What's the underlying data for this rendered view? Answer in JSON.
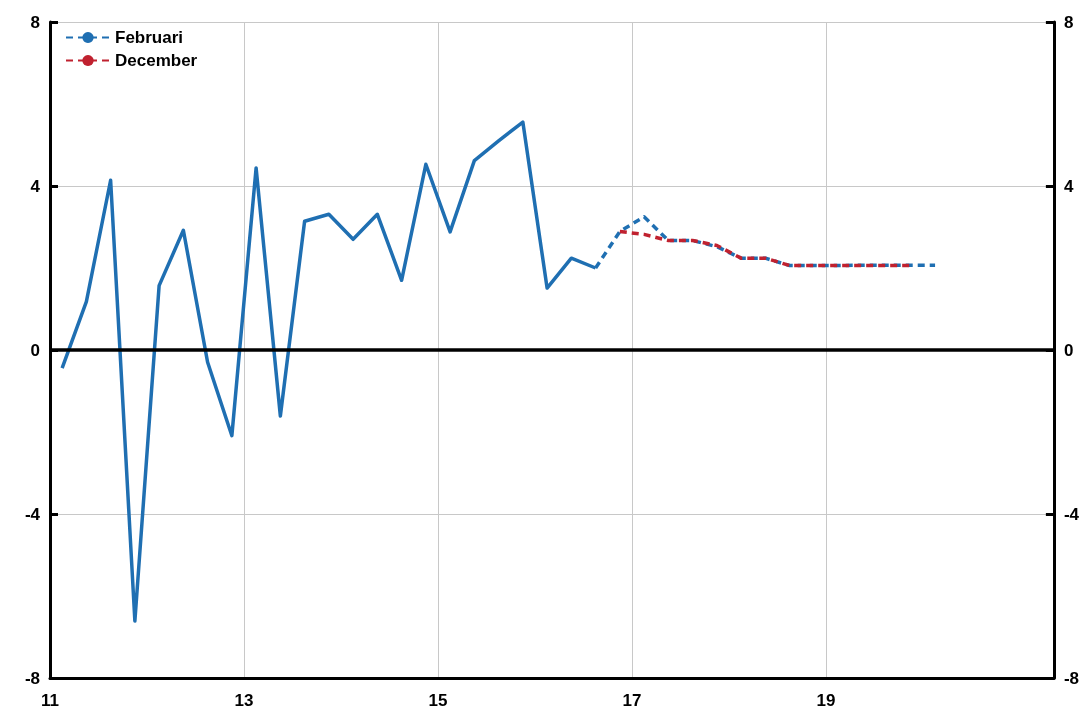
{
  "chart_data": {
    "type": "line",
    "xlim": [
      11,
      21.35
    ],
    "xticks": [
      11,
      13,
      15,
      17,
      19
    ],
    "ylim": [
      -8,
      8
    ],
    "yticks": [
      -8,
      -4,
      0,
      4,
      8
    ],
    "y2lim": [
      -8,
      8
    ],
    "y2ticks": [
      -8,
      -4,
      0,
      4,
      8
    ],
    "grid": true,
    "legend": "top left",
    "marker": "none",
    "ref_lines": [
      {
        "axis": "y",
        "value": 0,
        "color": "#000000"
      }
    ],
    "series": [
      {
        "color": "#1f6fb2",
        "line_style": "solid",
        "x": [
          11.125,
          11.375,
          11.625,
          11.875,
          12.125,
          12.375,
          12.625,
          12.875,
          13.125,
          13.375,
          13.625,
          13.875,
          14.125,
          14.375,
          14.625,
          14.875,
          15.125,
          15.375,
          15.625,
          15.875,
          16.125,
          16.375,
          16.625
        ],
        "values": [
          -0.44,
          1.18,
          4.14,
          -6.61,
          1.57,
          2.92,
          -0.3,
          -2.09,
          4.44,
          -1.61,
          3.14,
          3.31,
          2.7,
          3.31,
          1.7,
          4.53,
          2.88,
          4.62,
          5.1,
          5.56,
          1.51,
          2.24,
          2.0
        ]
      },
      {
        "name": "Februari",
        "color": "#1f6fb2",
        "line_style": "dashed",
        "x": [
          16.625,
          16.875,
          17.125,
          17.375,
          17.625,
          17.875,
          18.125,
          18.375,
          18.625,
          18.875,
          19.125,
          19.375,
          19.625,
          19.875,
          20.125
        ],
        "values": [
          2.0,
          2.89,
          3.25,
          2.67,
          2.67,
          2.52,
          2.24,
          2.24,
          2.06,
          2.06,
          2.06,
          2.07,
          2.07,
          2.07,
          2.07
        ]
      },
      {
        "name": "December",
        "color": "#c0212f",
        "line_style": "dashed",
        "x": [
          16.875,
          17.125,
          17.375,
          17.625,
          17.875,
          18.125,
          18.375,
          18.625,
          18.875,
          19.125,
          19.375,
          19.625,
          19.875
        ],
        "values": [
          2.89,
          2.82,
          2.67,
          2.67,
          2.55,
          2.24,
          2.24,
          2.06,
          2.06,
          2.06,
          2.06,
          2.06,
          2.06
        ]
      }
    ]
  }
}
